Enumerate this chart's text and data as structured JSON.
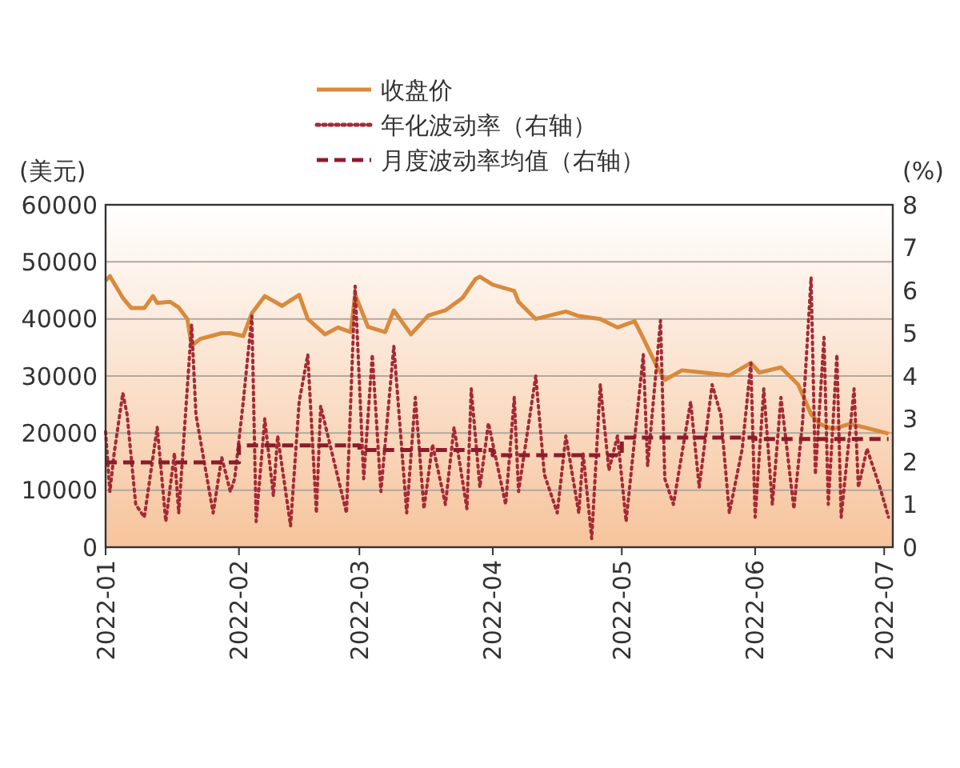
{
  "chart_data": {
    "type": "line",
    "ylabel": "(美元)",
    "y2label": "(%)",
    "legend": "top",
    "grid": "y",
    "xlim": [
      "2022-01-01",
      "2022-07-03"
    ],
    "xticks": [
      {
        "value": "2022-01-01",
        "label": "2022-01"
      },
      {
        "value": "2022-02-01",
        "label": "2022-02"
      },
      {
        "value": "2022-03-01",
        "label": "2022-03"
      },
      {
        "value": "2022-04-01",
        "label": "2022-04"
      },
      {
        "value": "2022-05-01",
        "label": "2022-05"
      },
      {
        "value": "2022-06-01",
        "label": "2022-06"
      },
      {
        "value": "2022-07-01",
        "label": "2022-07"
      }
    ],
    "ylim": [
      0,
      60000
    ],
    "yticks": [
      0,
      10000,
      20000,
      30000,
      40000,
      50000,
      60000
    ],
    "y2lim": [
      0,
      8
    ],
    "y2ticks": [
      0,
      1,
      2,
      3,
      4,
      5,
      6,
      7,
      8
    ],
    "series": [
      {
        "name": "收盘价",
        "type": "line",
        "color": "#d98a3c",
        "line_style": "solid",
        "x": [
          "2022-01-01",
          "2022-01-02",
          "2022-01-05",
          "2022-01-07",
          "2022-01-10",
          "2022-01-12",
          "2022-01-13",
          "2022-01-16",
          "2022-01-18",
          "2022-01-20",
          "2022-01-21",
          "2022-01-23",
          "2022-01-28",
          "2022-01-30",
          "2022-02-02",
          "2022-02-04",
          "2022-02-07",
          "2022-02-11",
          "2022-02-15",
          "2022-02-17",
          "2022-02-21",
          "2022-02-24",
          "2022-02-27",
          "2022-02-28",
          "2022-03-03",
          "2022-03-07",
          "2022-03-09",
          "2022-03-13",
          "2022-03-17",
          "2022-03-21",
          "2022-03-25",
          "2022-03-28",
          "2022-03-29",
          "2022-04-01",
          "2022-04-06",
          "2022-04-07",
          "2022-04-11",
          "2022-04-18",
          "2022-04-21",
          "2022-04-26",
          "2022-04-30",
          "2022-05-04",
          "2022-05-06",
          "2022-05-09",
          "2022-05-11",
          "2022-05-15",
          "2022-05-20",
          "2022-05-26",
          "2022-05-31",
          "2022-06-02",
          "2022-06-07",
          "2022-06-11",
          "2022-06-14",
          "2022-06-16",
          "2022-06-19",
          "2022-06-23",
          "2022-06-28",
          "2022-07-02"
        ],
        "values": [
          46700,
          47500,
          43700,
          41900,
          41900,
          44000,
          42800,
          43000,
          42000,
          40000,
          35300,
          36500,
          37500,
          37500,
          37000,
          41000,
          44000,
          42300,
          44200,
          40000,
          37300,
          38500,
          37700,
          44300,
          38600,
          37700,
          41500,
          37300,
          40600,
          41500,
          43700,
          47000,
          47400,
          46000,
          44900,
          43000,
          40000,
          41300,
          40500,
          40000,
          38500,
          39600,
          36600,
          31900,
          29300,
          31000,
          30600,
          30100,
          32300,
          30600,
          31500,
          28500,
          23300,
          21600,
          20700,
          21600,
          20700,
          19900
        ]
      },
      {
        "name": "年化波动率（右轴）",
        "type": "line",
        "axis": "y2",
        "color": "#a52a35",
        "line_style": "dotted",
        "x": [
          "2022-01-01",
          "2022-01-02",
          "2022-01-03",
          "2022-01-05",
          "2022-01-06",
          "2022-01-08",
          "2022-01-10",
          "2022-01-13",
          "2022-01-15",
          "2022-01-17",
          "2022-01-18",
          "2022-01-21",
          "2022-01-22",
          "2022-01-26",
          "2022-01-28",
          "2022-01-30",
          "2022-01-31",
          "2022-02-02",
          "2022-02-04",
          "2022-02-05",
          "2022-02-07",
          "2022-02-09",
          "2022-02-10",
          "2022-02-13",
          "2022-02-15",
          "2022-02-17",
          "2022-02-19",
          "2022-02-20",
          "2022-02-26",
          "2022-02-28",
          "2022-03-02",
          "2022-03-04",
          "2022-03-06",
          "2022-03-09",
          "2022-03-12",
          "2022-03-14",
          "2022-03-16",
          "2022-03-18",
          "2022-03-21",
          "2022-03-23",
          "2022-03-26",
          "2022-03-27",
          "2022-03-29",
          "2022-03-31",
          "2022-04-04",
          "2022-04-06",
          "2022-04-07",
          "2022-04-11",
          "2022-04-13",
          "2022-04-16",
          "2022-04-18",
          "2022-04-21",
          "2022-04-22",
          "2022-04-24",
          "2022-04-26",
          "2022-04-28",
          "2022-04-30",
          "2022-05-02",
          "2022-05-06",
          "2022-05-07",
          "2022-05-10",
          "2022-05-11",
          "2022-05-13",
          "2022-05-17",
          "2022-05-19",
          "2022-05-22",
          "2022-05-24",
          "2022-05-26",
          "2022-05-29",
          "2022-05-31",
          "2022-06-01",
          "2022-06-03",
          "2022-06-05",
          "2022-06-07",
          "2022-06-10",
          "2022-06-12",
          "2022-06-14",
          "2022-06-15",
          "2022-06-17",
          "2022-06-18",
          "2022-06-20",
          "2022-06-21",
          "2022-06-24",
          "2022-06-25",
          "2022-06-27",
          "2022-06-30",
          "2022-07-02"
        ],
        "values": [
          2.7,
          1.3,
          2.2,
          3.6,
          3.1,
          1.0,
          0.7,
          2.8,
          0.6,
          2.2,
          0.8,
          5.2,
          3.1,
          0.8,
          2.1,
          1.3,
          1.6,
          3.4,
          5.4,
          0.6,
          3.0,
          1.2,
          2.6,
          0.5,
          3.4,
          4.5,
          0.8,
          3.3,
          0.8,
          6.1,
          1.6,
          4.5,
          1.3,
          4.7,
          0.8,
          3.5,
          0.9,
          2.4,
          1.0,
          2.8,
          0.9,
          3.7,
          1.4,
          2.9,
          1.0,
          3.5,
          1.3,
          4.0,
          1.7,
          0.8,
          2.6,
          0.8,
          2.2,
          0.2,
          3.8,
          1.8,
          2.6,
          0.6,
          4.5,
          1.9,
          5.3,
          1.6,
          1.0,
          3.4,
          1.4,
          3.8,
          3.1,
          0.8,
          2.3,
          4.3,
          0.7,
          3.7,
          1.0,
          3.5,
          0.9,
          2.9,
          6.3,
          1.7,
          4.9,
          1.0,
          4.5,
          0.7,
          3.7,
          1.4,
          2.3,
          1.4,
          0.7
        ]
      },
      {
        "name": "月度波动率均值（右轴）",
        "type": "step",
        "axis": "y2",
        "color": "#8c1c2c",
        "line_style": "dashed",
        "x": [
          "2022-01-01",
          "2022-02-01",
          "2022-03-01",
          "2022-04-01",
          "2022-05-01",
          "2022-06-01",
          "2022-07-02"
        ],
        "values": [
          1.98,
          2.38,
          2.27,
          2.15,
          2.56,
          2.53,
          2.53
        ]
      }
    ]
  }
}
